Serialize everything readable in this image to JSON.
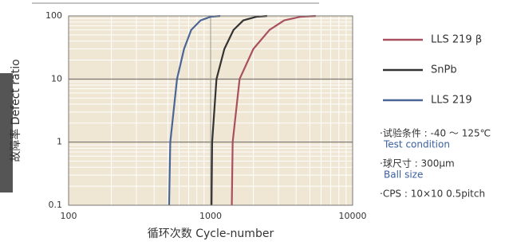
{
  "chart_data": {
    "type": "line",
    "x_label": "循环次数 Cycle-number",
    "y_label": "故障率 Defect ratio",
    "xscale": "log",
    "yscale": "log",
    "xlim": [
      100,
      10000
    ],
    "xticks": [
      100,
      1000,
      10000
    ],
    "ylim": [
      0.1,
      100
    ],
    "yticks": [
      0.1,
      1,
      10,
      100
    ],
    "grid": true,
    "minor_grid": true,
    "background": "#efe6d3",
    "legend": "right",
    "series": [
      {
        "name": "LLS 219 β",
        "color": "#a8505f",
        "x": [
          1410,
          1430,
          1600,
          2000,
          2600,
          3300,
          4300,
          5500
        ],
        "values": [
          0.1,
          1,
          10,
          30,
          60,
          85,
          97,
          100
        ]
      },
      {
        "name": "SnPb",
        "color": "#333333",
        "x": [
          1015,
          1025,
          1100,
          1250,
          1450,
          1700,
          2100,
          2500
        ],
        "values": [
          0.1,
          1,
          10,
          30,
          60,
          85,
          97,
          100
        ]
      },
      {
        "name": "LLS 219",
        "color": "#4a6596",
        "x": [
          510,
          520,
          580,
          650,
          730,
          850,
          1000,
          1170
        ],
        "values": [
          0.1,
          1,
          10,
          30,
          60,
          85,
          97,
          100
        ]
      }
    ],
    "annotations": [
      {
        "text": "·试验条件 : -40 ～ 125℃",
        "subtext": "Test condition"
      },
      {
        "text": "·球尺寸 : 300μm",
        "subtext": "Ball size"
      },
      {
        "text": "·CPS : 10×10 0.5pitch"
      }
    ]
  }
}
